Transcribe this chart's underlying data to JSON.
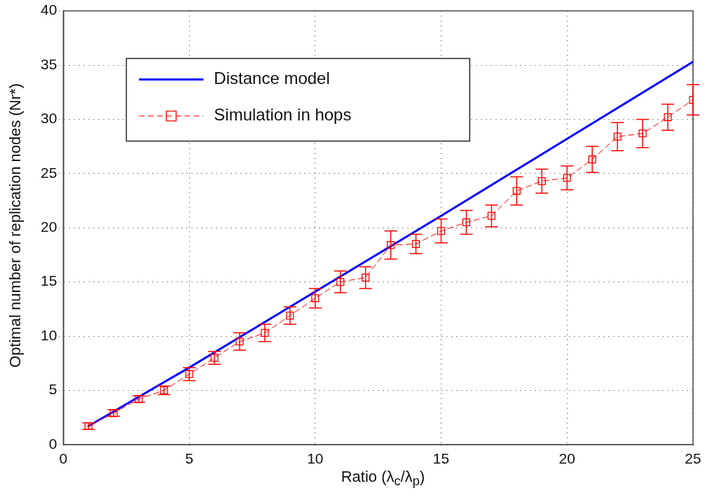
{
  "chart_data": {
    "type": "line",
    "xlabel": "Ratio (λ$_{c}$/λ$_{p}$)",
    "ylabel": "Optimal number of replication nodes  (Nr*)",
    "xlim": [
      0,
      25
    ],
    "xticks": [
      0,
      5,
      10,
      15,
      20,
      25
    ],
    "ylim": [
      0,
      40
    ],
    "yticks": [
      0,
      5,
      10,
      15,
      20,
      25,
      30,
      35,
      40
    ],
    "grid": true,
    "legend": "top left",
    "series": [
      {
        "name": "Distance model",
        "color": "#0000ff",
        "marker": "none",
        "line_style": "solid",
        "x": [
          1,
          5,
          10,
          15,
          20,
          25
        ],
        "values": [
          1.7,
          7.1,
          14.1,
          21.1,
          28.2,
          35.3
        ]
      },
      {
        "name": "Simulation in hops",
        "color": "#ff0000",
        "marker": "square",
        "line_style": "dashed",
        "x": [
          1,
          2,
          3,
          4,
          5,
          6,
          7,
          8,
          9,
          10,
          11,
          12,
          13,
          14,
          15,
          16,
          17,
          18,
          19,
          20,
          21,
          22,
          23,
          24,
          25
        ],
        "values": [
          1.7,
          2.9,
          4.2,
          5.0,
          6.5,
          8.0,
          9.5,
          10.3,
          11.9,
          13.5,
          15.0,
          15.4,
          18.4,
          18.5,
          19.7,
          20.5,
          21.1,
          23.4,
          24.3,
          24.6,
          26.3,
          28.4,
          28.7,
          30.2,
          31.8
        ],
        "errors": [
          0.3,
          0.3,
          0.3,
          0.4,
          0.6,
          0.6,
          0.8,
          0.8,
          0.8,
          0.9,
          1.0,
          1.0,
          1.3,
          0.9,
          1.1,
          1.1,
          1.0,
          1.3,
          1.1,
          1.1,
          1.2,
          1.3,
          1.3,
          1.2,
          1.4
        ]
      }
    ]
  }
}
